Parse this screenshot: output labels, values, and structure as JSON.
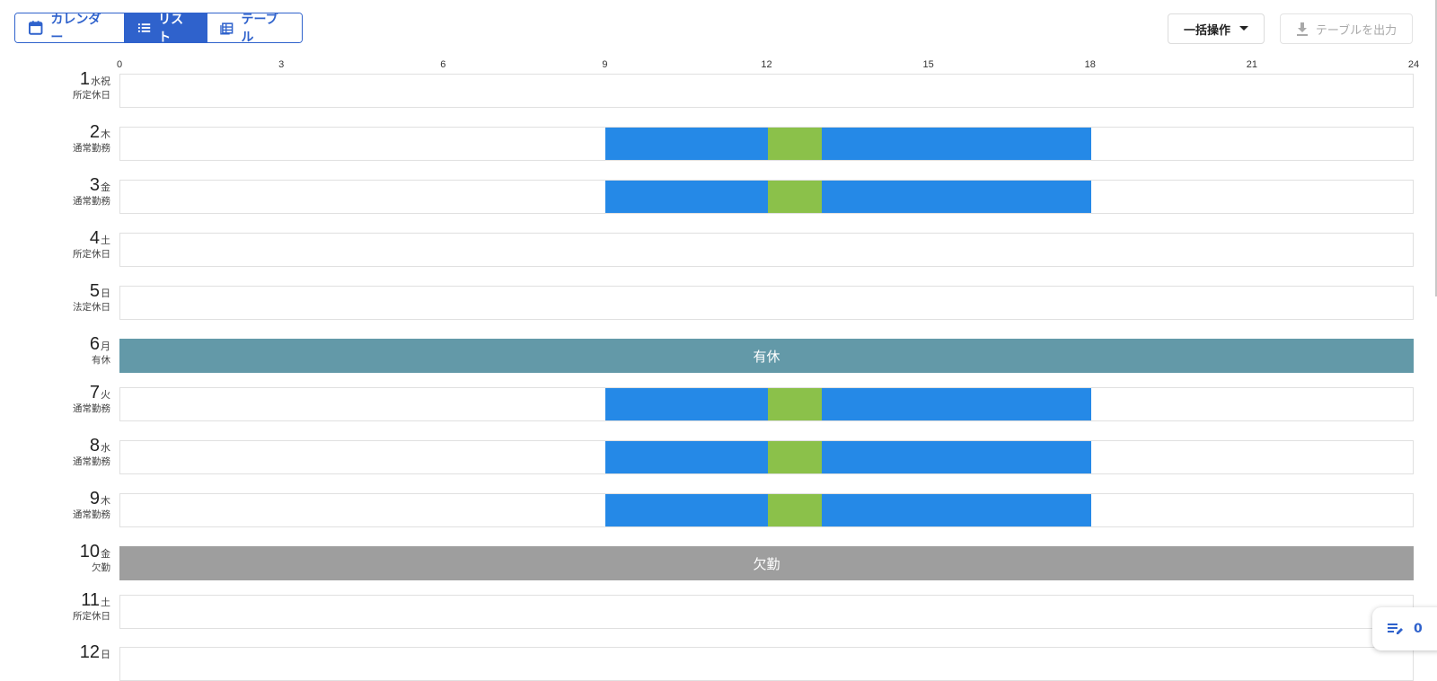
{
  "toolbar": {
    "views": [
      {
        "label": "カレンダー",
        "icon": "calendar-icon",
        "active": false
      },
      {
        "label": "リスト",
        "icon": "list-icon",
        "active": true
      },
      {
        "label": "テーブル",
        "icon": "table-icon",
        "active": false
      }
    ],
    "bulk_label": "一括操作",
    "export_label": "テーブルを出力"
  },
  "timeline": {
    "range": [
      0,
      24
    ],
    "ticks": [
      "0",
      "3",
      "6",
      "9",
      "12",
      "15",
      "18",
      "21",
      "24"
    ]
  },
  "days": [
    {
      "day": "1",
      "weekday": "水祝",
      "type": "所定休日",
      "segments": []
    },
    {
      "day": "2",
      "weekday": "木",
      "type": "通常勤務",
      "segments": [
        {
          "kind": "work",
          "start": 9,
          "end": 12
        },
        {
          "kind": "break",
          "start": 12,
          "end": 13
        },
        {
          "kind": "work",
          "start": 13,
          "end": 18
        }
      ]
    },
    {
      "day": "3",
      "weekday": "金",
      "type": "通常勤務",
      "segments": [
        {
          "kind": "work",
          "start": 9,
          "end": 12
        },
        {
          "kind": "break",
          "start": 12,
          "end": 13
        },
        {
          "kind": "work",
          "start": 13,
          "end": 18
        }
      ]
    },
    {
      "day": "4",
      "weekday": "土",
      "type": "所定休日",
      "segments": []
    },
    {
      "day": "5",
      "weekday": "日",
      "type": "法定休日",
      "segments": []
    },
    {
      "day": "6",
      "weekday": "月",
      "type": "有休",
      "fullday": "有休"
    },
    {
      "day": "7",
      "weekday": "火",
      "type": "通常勤務",
      "segments": [
        {
          "kind": "work",
          "start": 9,
          "end": 12
        },
        {
          "kind": "break",
          "start": 12,
          "end": 13
        },
        {
          "kind": "work",
          "start": 13,
          "end": 18
        }
      ]
    },
    {
      "day": "8",
      "weekday": "水",
      "type": "通常勤務",
      "segments": [
        {
          "kind": "work",
          "start": 9,
          "end": 12
        },
        {
          "kind": "break",
          "start": 12,
          "end": 13
        },
        {
          "kind": "work",
          "start": 13,
          "end": 18
        }
      ]
    },
    {
      "day": "9",
      "weekday": "木",
      "type": "通常勤務",
      "segments": [
        {
          "kind": "work",
          "start": 9,
          "end": 12
        },
        {
          "kind": "break",
          "start": 12,
          "end": 13
        },
        {
          "kind": "work",
          "start": 13,
          "end": 18
        }
      ]
    },
    {
      "day": "10",
      "weekday": "金",
      "type": "欠勤",
      "fullday": "欠勤"
    },
    {
      "day": "11",
      "weekday": "土",
      "type": "所定休日",
      "segments": []
    },
    {
      "day": "12",
      "weekday": "日",
      "type": "",
      "segments": []
    }
  ],
  "colors": {
    "accent": "#2f62cc",
    "work": "#2589e7",
    "break": "#8bc14a",
    "paid_leave": "#6399a8",
    "absence": "#9e9e9e"
  },
  "edits_count": "0"
}
